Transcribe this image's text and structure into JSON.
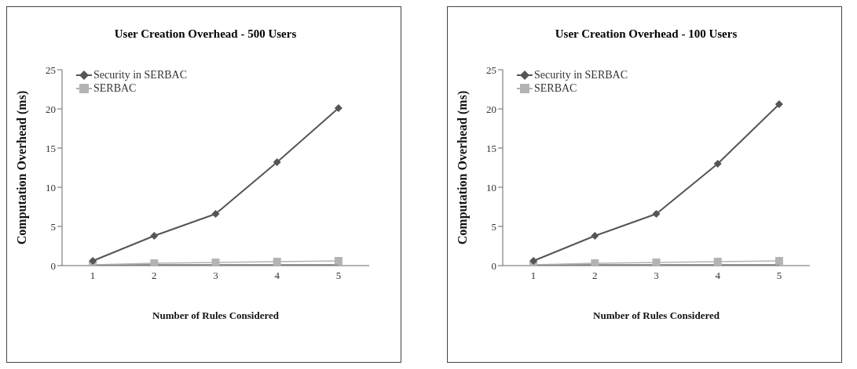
{
  "chart_data": [
    {
      "type": "line",
      "title": "User Creation Overhead - 500 Users",
      "xlabel": "Number of Rules Considered",
      "ylabel": "Computation Overhead (ms)",
      "x": [
        1,
        2,
        3,
        4,
        5
      ],
      "xlim": [
        0.5,
        5.5
      ],
      "xticks": [
        1,
        2,
        3,
        4,
        5
      ],
      "ylim": [
        0,
        25
      ],
      "yticks": [
        0,
        5,
        10,
        15,
        20,
        25
      ],
      "grid": false,
      "legend": "top left",
      "series": [
        {
          "name": "Security in SERBAC",
          "color": "#555555",
          "marker": "diamond",
          "values": [
            0.6,
            3.8,
            6.6,
            13.2,
            20.1
          ]
        },
        {
          "name": "SERBAC",
          "color": "#b3b3b3",
          "marker": "square",
          "values": [
            0.1,
            0.3,
            0.4,
            0.5,
            0.6
          ]
        },
        {
          "color": "#777777",
          "marker": "none",
          "values": [
            0.1,
            0.1,
            0.1,
            0.1,
            0.1
          ]
        }
      ]
    },
    {
      "type": "line",
      "title": "User Creation Overhead - 100 Users",
      "xlabel": "Number of Rules Considered",
      "ylabel": "Computation Overhead (ms)",
      "x": [
        1,
        2,
        3,
        4,
        5
      ],
      "xlim": [
        0.5,
        5.5
      ],
      "xticks": [
        1,
        2,
        3,
        4,
        5
      ],
      "ylim": [
        0,
        25
      ],
      "yticks": [
        0,
        5,
        10,
        15,
        20,
        25
      ],
      "grid": false,
      "legend": "top left",
      "series": [
        {
          "name": "Security in SERBAC",
          "color": "#555555",
          "marker": "diamond",
          "values": [
            0.6,
            3.8,
            6.6,
            13.0,
            20.6
          ]
        },
        {
          "name": "SERBAC",
          "color": "#b3b3b3",
          "marker": "square",
          "values": [
            0.1,
            0.3,
            0.4,
            0.5,
            0.6
          ]
        },
        {
          "color": "#777777",
          "marker": "none",
          "values": [
            0.1,
            0.1,
            0.1,
            0.1,
            0.1
          ]
        }
      ]
    }
  ]
}
